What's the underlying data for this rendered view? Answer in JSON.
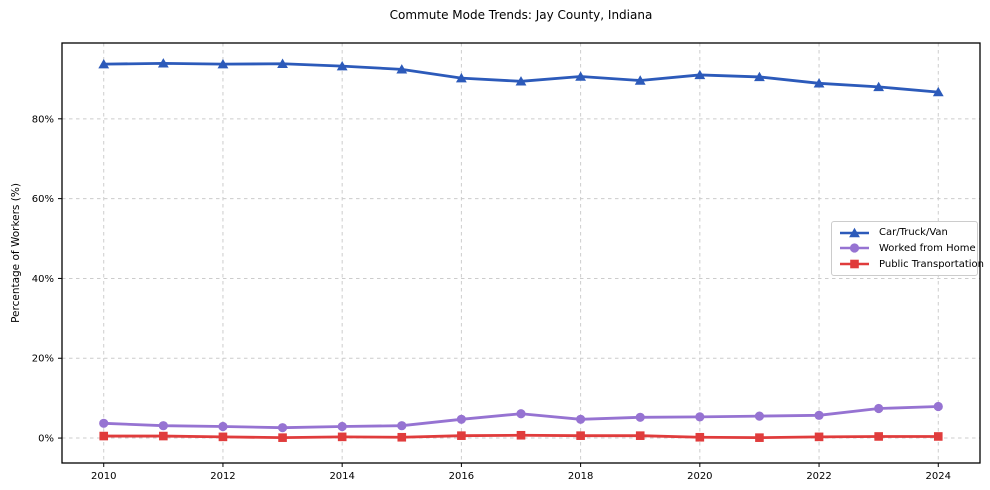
{
  "figure": {
    "title": "Commute Mode Trends: Jay County, Indiana",
    "background": "#ffffff"
  },
  "axes": {
    "ylabel": "Percentage of Workers (%)",
    "x_tick_labels": [
      "2010",
      "2012",
      "2014",
      "2016",
      "2018",
      "2020",
      "2022",
      "2024"
    ],
    "x_tick_values": [
      2010,
      2012,
      2014,
      2016,
      2018,
      2020,
      2022,
      2024
    ],
    "y_tick_labels": [
      "0%",
      "20%",
      "40%",
      "60%",
      "80%"
    ],
    "y_tick_values": [
      0,
      20,
      40,
      60,
      80
    ],
    "grid_color": "#cccccc",
    "frame_color": "#000000"
  },
  "chart_data": {
    "type": "line",
    "title": "Commute Mode Trends: Jay County, Indiana",
    "xlabel": "",
    "ylabel": "Percentage of Workers (%)",
    "grid": true,
    "legend_position": "center right",
    "xlim": [
      2009.3,
      2024.7
    ],
    "ylim": [
      -6.25,
      99
    ],
    "x": [
      2010,
      2011,
      2012,
      2013,
      2014,
      2015,
      2016,
      2017,
      2018,
      2019,
      2020,
      2021,
      2022,
      2023,
      2024
    ],
    "series": [
      {
        "name": "Car/Truck/Van",
        "color": "#2c5aba",
        "marker": "triangle",
        "values": [
          93.7,
          93.9,
          93.7,
          93.8,
          93.2,
          92.4,
          90.2,
          89.4,
          90.6,
          89.6,
          91.0,
          90.5,
          88.9,
          88.0,
          86.7
        ]
      },
      {
        "name": "Worked from Home",
        "color": "#9673d2",
        "marker": "circle",
        "values": [
          3.7,
          3.1,
          2.9,
          2.6,
          2.9,
          3.1,
          4.7,
          6.1,
          4.7,
          5.2,
          5.3,
          5.5,
          5.7,
          7.4,
          7.9
        ]
      },
      {
        "name": "Public Transportation",
        "color": "#e03c3c",
        "marker": "square",
        "values": [
          0.5,
          0.5,
          0.3,
          0.1,
          0.3,
          0.2,
          0.6,
          0.7,
          0.6,
          0.6,
          0.2,
          0.1,
          0.3,
          0.4,
          0.4
        ]
      }
    ]
  }
}
